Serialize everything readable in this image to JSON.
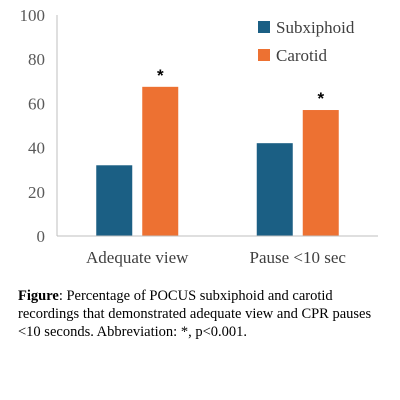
{
  "chart_data": {
    "type": "bar",
    "categories": [
      "Adequate view",
      "Pause <10 sec"
    ],
    "series": [
      {
        "name": "Subxiphoid",
        "values": [
          32,
          42
        ],
        "color": "#1b5f84"
      },
      {
        "name": "Carotid",
        "values": [
          67.5,
          57
        ],
        "color": "#ed7132"
      }
    ],
    "annotations": [
      "",
      "*"
    ],
    "annotation_positions": [
      {
        "category": 0,
        "series": 1
      },
      {
        "category": 1,
        "series": 1
      }
    ],
    "annotation_marks": [
      "*",
      "*"
    ],
    "ylim": [
      0,
      100
    ],
    "yticks": [
      0,
      20,
      40,
      60,
      80,
      100
    ],
    "grid": false,
    "legend_position": "top-right"
  },
  "caption": {
    "label": "Figure",
    "text": ": Percentage of POCUS subxiphoid and carotid recordings that demonstrated adequate view and CPR pauses <10 seconds. Abbreviation: *, p<0.001."
  }
}
